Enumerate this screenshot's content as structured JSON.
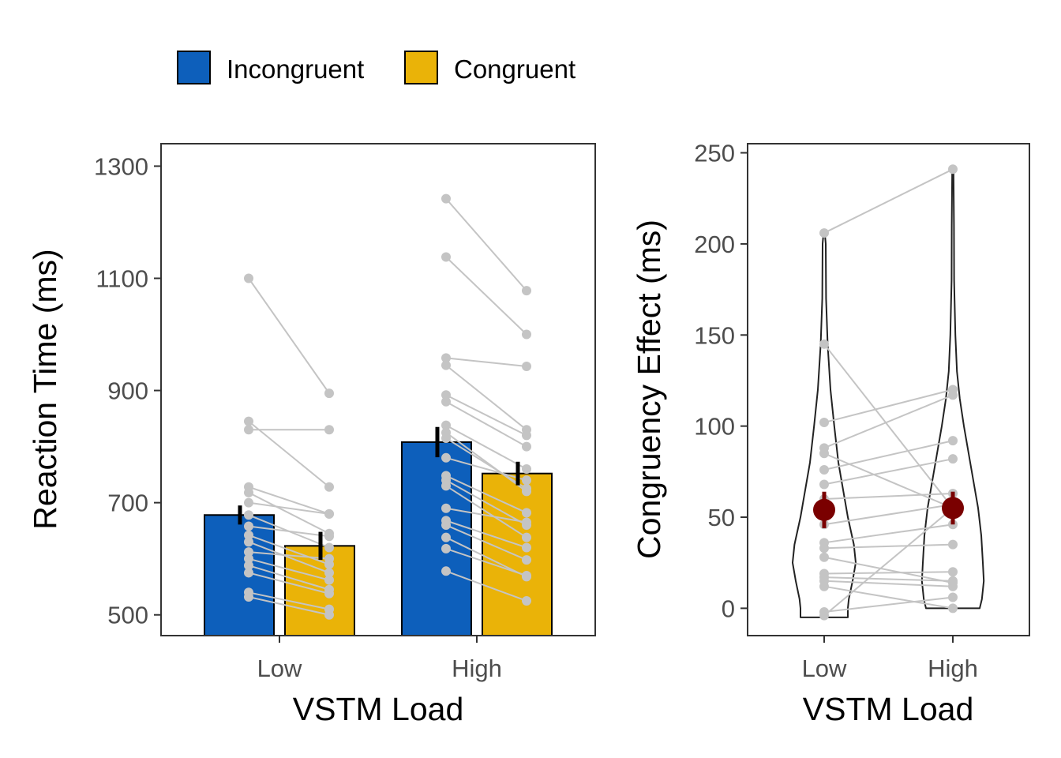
{
  "legend": {
    "items": [
      {
        "label": "Incongruent",
        "color": "#0d5fbb"
      },
      {
        "label": "Congruent",
        "color": "#eab308"
      }
    ],
    "position": "top"
  },
  "chart_data": [
    {
      "type": "bar",
      "xlabel": "VSTM Load",
      "ylabel": "Reaction Time (ms)",
      "categories": [
        "Low",
        "High"
      ],
      "yticks": [
        500,
        700,
        900,
        1100,
        1300
      ],
      "ylim": [
        463,
        1340
      ],
      "grid": false,
      "series": [
        {
          "name": "Incongruent",
          "color": "#0d5fbb",
          "values": [
            678,
            808
          ],
          "errors": [
            17,
            27
          ]
        },
        {
          "name": "Congruent",
          "color": "#eab308",
          "values": [
            623,
            752
          ],
          "errors": [
            25,
            21
          ]
        }
      ],
      "subject_lines": {
        "color": "#c4c4c4",
        "Low": [
          [
            1100,
            895
          ],
          [
            845,
            728
          ],
          [
            830,
            830
          ],
          [
            728,
            680
          ],
          [
            718,
            645
          ],
          [
            700,
            680
          ],
          [
            678,
            620
          ],
          [
            658,
            640
          ],
          [
            642,
            590
          ],
          [
            630,
            575
          ],
          [
            612,
            600
          ],
          [
            600,
            562
          ],
          [
            588,
            545
          ],
          [
            575,
            538
          ],
          [
            540,
            510
          ],
          [
            532,
            500
          ]
        ],
        "High": [
          [
            1242,
            1078
          ],
          [
            1138,
            1000
          ],
          [
            958,
            943
          ],
          [
            945,
            830
          ],
          [
            892,
            820
          ],
          [
            880,
            800
          ],
          [
            838,
            760
          ],
          [
            825,
            720
          ],
          [
            815,
            725
          ],
          [
            780,
            740
          ],
          [
            748,
            682
          ],
          [
            740,
            660
          ],
          [
            730,
            638
          ],
          [
            690,
            665
          ],
          [
            668,
            620
          ],
          [
            660,
            598
          ],
          [
            638,
            568
          ],
          [
            618,
            570
          ],
          [
            578,
            525
          ]
        ]
      }
    },
    {
      "type": "violin",
      "xlabel": "VSTM Load",
      "ylabel": "Congruency Effect (ms)",
      "categories": [
        "Low",
        "High"
      ],
      "yticks": [
        0,
        50,
        100,
        150,
        200,
        250
      ],
      "ylim": [
        -15,
        255
      ],
      "grid": false,
      "means": [
        {
          "category": "Low",
          "value": 54,
          "error": 10
        },
        {
          "category": "High",
          "value": 55,
          "error": 9
        }
      ],
      "mean_color": "#7a0000",
      "point_color": "#c4c4c4",
      "subject_lines": [
        [
          206,
          241
        ],
        [
          145,
          55
        ],
        [
          102,
          120
        ],
        [
          88,
          117
        ],
        [
          85,
          55
        ],
        [
          76,
          92
        ],
        [
          68,
          82
        ],
        [
          60,
          63
        ],
        [
          46,
          57
        ],
        [
          36,
          46
        ],
        [
          33,
          35
        ],
        [
          28,
          14
        ],
        [
          19,
          20
        ],
        [
          17,
          15
        ],
        [
          15,
          12
        ],
        [
          12,
          0
        ],
        [
          -2,
          6
        ],
        [
          -4,
          55
        ]
      ],
      "violins": {
        "Low": [
          [
            -5,
            0.75
          ],
          [
            0,
            0.75
          ],
          [
            5,
            0.78
          ],
          [
            15,
            0.9
          ],
          [
            25,
            1.0
          ],
          [
            35,
            0.94
          ],
          [
            50,
            0.75
          ],
          [
            65,
            0.6
          ],
          [
            80,
            0.45
          ],
          [
            100,
            0.32
          ],
          [
            120,
            0.2
          ],
          [
            145,
            0.11
          ],
          [
            170,
            0.06
          ],
          [
            200,
            0.05
          ],
          [
            206,
            0.02
          ]
        ],
        "High": [
          [
            0,
            0.85
          ],
          [
            5,
            0.92
          ],
          [
            15,
            0.98
          ],
          [
            25,
            0.95
          ],
          [
            40,
            0.9
          ],
          [
            55,
            0.8
          ],
          [
            70,
            0.65
          ],
          [
            85,
            0.5
          ],
          [
            100,
            0.35
          ],
          [
            115,
            0.22
          ],
          [
            130,
            0.13
          ],
          [
            150,
            0.08
          ],
          [
            180,
            0.04
          ],
          [
            210,
            0.035
          ],
          [
            241,
            0.02
          ]
        ]
      }
    }
  ]
}
